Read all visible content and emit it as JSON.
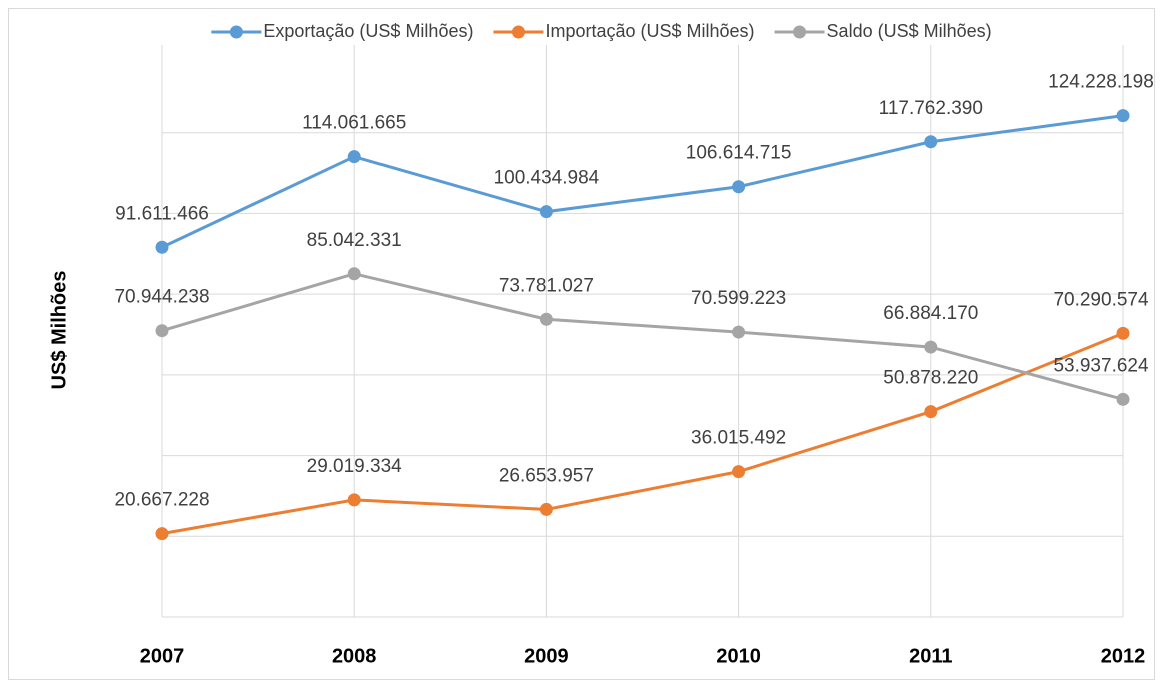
{
  "chart_data": {
    "type": "line",
    "y_label": "US$ Milhões",
    "categories": [
      "2007",
      "2008",
      "2009",
      "2010",
      "2011",
      "2012"
    ],
    "series": [
      {
        "name": "Exportação (US$ Milhões)",
        "color": "#5b9bd5",
        "values": [
          91611466,
          114061665,
          100434984,
          106614715,
          117762390,
          124228198
        ],
        "value_labels": [
          "91.611.466",
          "114.061.665",
          "100.434.984",
          "106.614.715",
          "117.762.390",
          "124.228.198"
        ]
      },
      {
        "name": "Importação (US$ Milhões)",
        "color": "#ed7d31",
        "values": [
          20667228,
          29019334,
          26653957,
          36015492,
          50878220,
          70290574
        ],
        "value_labels": [
          "20.667.228",
          "29.019.334",
          "26.653.957",
          "36.015.492",
          "50.878.220",
          "70.290.574"
        ]
      },
      {
        "name": "Saldo (US$ Milhões)",
        "color": "#a5a5a5",
        "values": [
          70944238,
          85042331,
          73781027,
          70599223,
          66884170,
          53937624
        ],
        "value_labels": [
          "70.944.238",
          "85.042.331",
          "73.781.027",
          "70.599.223",
          "66.884.170",
          "53.937.624"
        ]
      }
    ],
    "ylim": [
      0,
      140000000
    ],
    "yticks": [
      0,
      20000000,
      40000000,
      60000000,
      80000000,
      100000000,
      120000000
    ],
    "grid": true,
    "legend": "top"
  }
}
